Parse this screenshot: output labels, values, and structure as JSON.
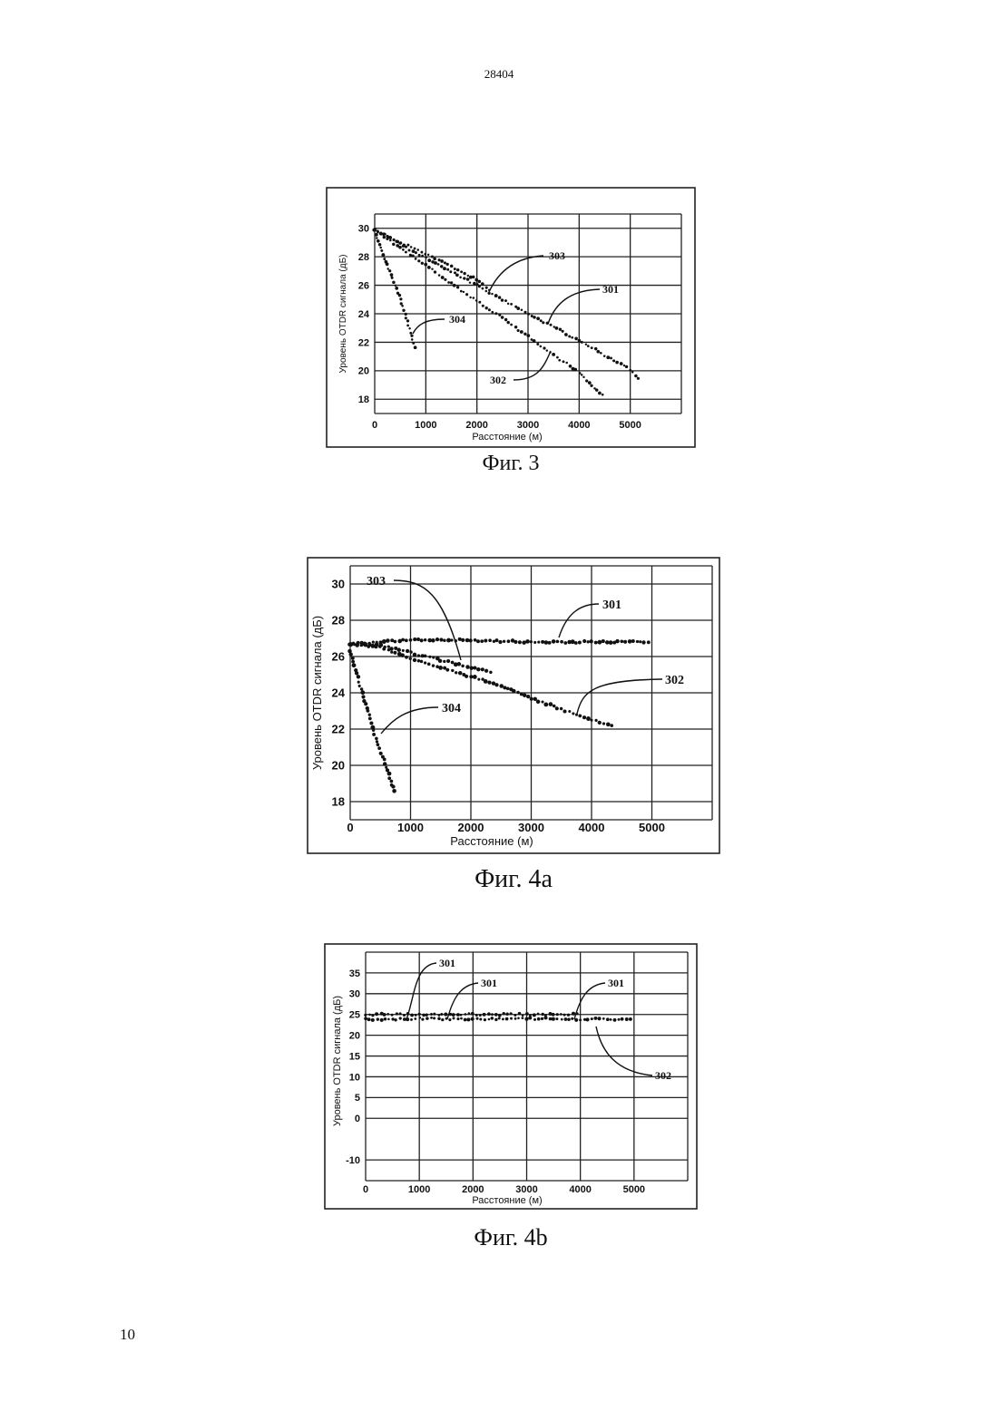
{
  "page": {
    "doc_number": "28404",
    "page_number": "10"
  },
  "chart_data": [
    {
      "id": "fig3",
      "type": "scatter",
      "caption": "Фиг. 3",
      "ylabel": "Уровень OTDR сигнала (дБ)",
      "xlabel": "Расстояние (м)",
      "xlim": [
        0,
        6000
      ],
      "ylim": [
        17,
        31
      ],
      "xticks": [
        0,
        1000,
        2000,
        3000,
        4000,
        5000
      ],
      "yticks": [
        18,
        20,
        22,
        24,
        26,
        28,
        30
      ],
      "grid": true,
      "series": [
        {
          "name": "301",
          "x": [
            0,
            500,
            1000,
            1500,
            2000,
            2500,
            3000,
            3500,
            4000,
            4500,
            5000,
            5200
          ],
          "y": [
            29.9,
            28.9,
            27.9,
            27.0,
            26.0,
            25.0,
            24.0,
            23.1,
            22.1,
            21.1,
            20.1,
            19.2
          ]
        },
        {
          "name": "302",
          "x": [
            0,
            500,
            1000,
            1500,
            2000,
            2500,
            3000,
            3500,
            4000,
            4500
          ],
          "y": [
            29.9,
            28.6,
            27.4,
            26.1,
            24.9,
            23.7,
            22.4,
            21.1,
            19.9,
            18.1
          ]
        },
        {
          "name": "303",
          "x": [
            0,
            500,
            1000,
            1500,
            2000,
            2300
          ],
          "y": [
            29.9,
            29.0,
            28.2,
            27.3,
            26.4,
            25.5
          ]
        },
        {
          "name": "304",
          "x": [
            0,
            200,
            400,
            600,
            800
          ],
          "y": [
            29.8,
            27.9,
            26.0,
            24.0,
            21.4
          ]
        }
      ],
      "annotations": [
        "303",
        "301",
        "304",
        "302"
      ]
    },
    {
      "id": "fig4a",
      "type": "scatter",
      "caption": "Фиг. 4a",
      "ylabel": "Уровень OTDR сигнала (дБ)",
      "xlabel": "Расстояние (м)",
      "xlim": [
        0,
        6000
      ],
      "ylim": [
        17,
        31
      ],
      "xticks": [
        0,
        1000,
        2000,
        3000,
        4000,
        5000
      ],
      "yticks": [
        18,
        20,
        22,
        24,
        26,
        28,
        30
      ],
      "grid": true,
      "series": [
        {
          "name": "301",
          "x": [
            0,
            1000,
            2000,
            3000,
            4000,
            5000
          ],
          "y": [
            26.7,
            26.9,
            26.9,
            26.8,
            26.8,
            26.8
          ]
        },
        {
          "name": "302",
          "x": [
            0,
            500,
            1000,
            1500,
            2000,
            2500,
            3000,
            3500,
            4000,
            4400
          ],
          "y": [
            26.7,
            26.5,
            25.9,
            25.4,
            24.9,
            24.4,
            23.7,
            23.1,
            22.5,
            22.2
          ]
        },
        {
          "name": "303",
          "x": [
            0,
            500,
            1000,
            1500,
            2000,
            2400
          ],
          "y": [
            26.7,
            26.6,
            26.2,
            25.8,
            25.4,
            25.1
          ]
        },
        {
          "name": "304",
          "x": [
            0,
            200,
            400,
            600,
            750
          ],
          "y": [
            26.3,
            24.0,
            21.7,
            19.9,
            18.4
          ]
        }
      ],
      "annotations": [
        "303",
        "301",
        "302",
        "304"
      ]
    },
    {
      "id": "fig4b",
      "type": "scatter",
      "caption": "Фиг. 4b",
      "ylabel": "Уровень OTDR сигнала (дБ)",
      "xlabel": "Расстояние (м)",
      "xlim": [
        0,
        6000
      ],
      "ylim": [
        -15,
        40
      ],
      "xticks": [
        0,
        1000,
        2000,
        3000,
        4000,
        5000
      ],
      "yticks": [
        -10,
        0,
        5,
        10,
        15,
        20,
        25,
        30,
        35
      ],
      "grid": true,
      "series": [
        {
          "name": "301",
          "x": [
            0,
            1000,
            2000,
            3000,
            4000
          ],
          "y": [
            25.0,
            25.0,
            25.0,
            25.0,
            25.0
          ]
        },
        {
          "name": "302",
          "x": [
            0,
            1000,
            2000,
            3000,
            4000,
            5000
          ],
          "y": [
            23.8,
            24.0,
            23.9,
            24.0,
            23.9,
            23.9
          ]
        }
      ],
      "annotations": [
        "301",
        "301",
        "301",
        "302"
      ]
    }
  ]
}
